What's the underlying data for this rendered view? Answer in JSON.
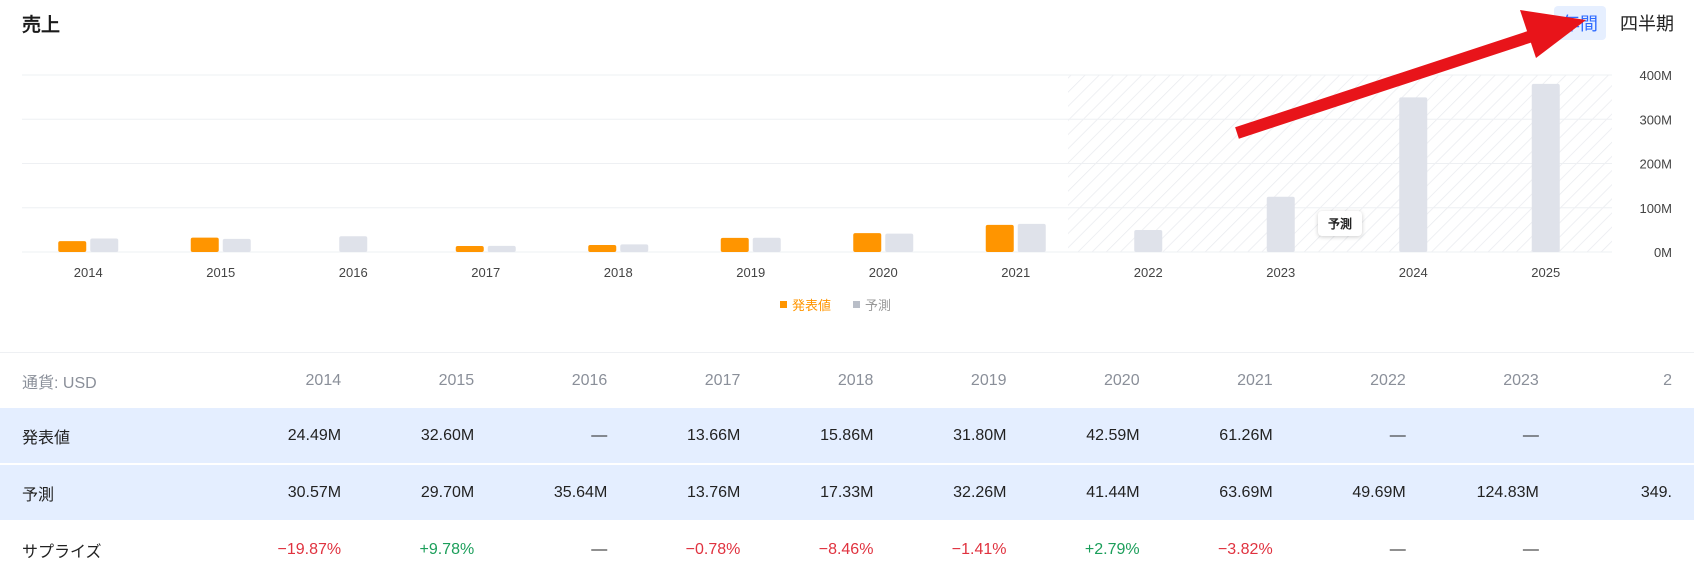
{
  "header": {
    "title": "売上",
    "period_annual": "年間",
    "period_quarterly": "四半期"
  },
  "colors": {
    "reported": "#ff9500",
    "forecast": "#dfe2ea",
    "accent": "#2f6bff",
    "pos": "#1b9e5a",
    "neg": "#e0323f",
    "arrow": "#e8141a"
  },
  "chart_data": {
    "type": "bar",
    "title": "売上",
    "categories": [
      "2014",
      "2015",
      "2016",
      "2017",
      "2018",
      "2019",
      "2020",
      "2021",
      "2022",
      "2023",
      "2024",
      "2025"
    ],
    "series": [
      {
        "name": "発表値",
        "values": [
          24.49,
          32.6,
          null,
          13.66,
          15.86,
          31.8,
          42.59,
          61.26,
          null,
          null,
          null,
          null
        ]
      },
      {
        "name": "予測",
        "values": [
          30.57,
          29.7,
          35.64,
          13.76,
          17.33,
          32.26,
          41.44,
          63.69,
          49.69,
          124.83,
          349.5,
          380
        ]
      }
    ],
    "y_unit": "M",
    "ylim": [
      0,
      400
    ],
    "yticks": [
      "0M",
      "100M",
      "200M",
      "300M",
      "400M"
    ],
    "forecast_region_start": "2022",
    "tooltip": "予測"
  },
  "legend": {
    "reported": "発表値",
    "forecast": "予測"
  },
  "table": {
    "currency_label": "通貨: USD",
    "years": [
      "2014",
      "2015",
      "2016",
      "2017",
      "2018",
      "2019",
      "2020",
      "2021",
      "2022",
      "2023",
      "2"
    ],
    "rows": [
      {
        "label": "発表値",
        "cells": [
          "24.49M",
          "32.60M",
          "—",
          "13.66M",
          "15.86M",
          "31.80M",
          "42.59M",
          "61.26M",
          "—",
          "—",
          ""
        ]
      },
      {
        "label": "予測",
        "cells": [
          "30.57M",
          "29.70M",
          "35.64M",
          "13.76M",
          "17.33M",
          "32.26M",
          "41.44M",
          "63.69M",
          "49.69M",
          "124.83M",
          "349."
        ]
      },
      {
        "label": "サプライズ",
        "cells": [
          "−19.87%",
          "+9.78%",
          "—",
          "−0.78%",
          "−8.46%",
          "−1.41%",
          "+2.79%",
          "−3.82%",
          "—",
          "—",
          ""
        ]
      }
    ]
  }
}
